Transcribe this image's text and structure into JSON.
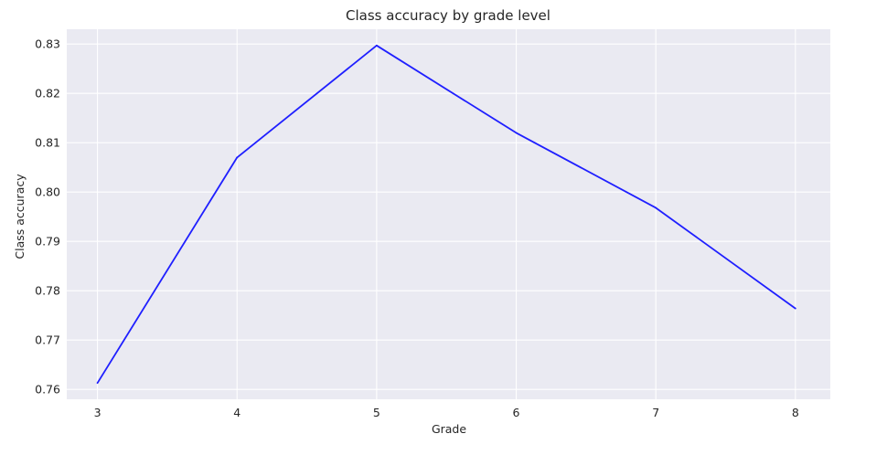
{
  "chart_data": {
    "type": "line",
    "title": "Class accuracy by grade level",
    "xlabel": "Grade",
    "ylabel": "Class accuracy",
    "x": [
      3,
      4,
      5,
      6,
      7,
      8
    ],
    "series": [
      {
        "values": [
          0.7613,
          0.807,
          0.8297,
          0.812,
          0.7968,
          0.7764
        ],
        "color": "#1f1fff"
      }
    ],
    "x_ticks": [
      "3",
      "4",
      "5",
      "6",
      "7",
      "8"
    ],
    "y_ticks": [
      "0.76",
      "0.77",
      "0.78",
      "0.79",
      "0.80",
      "0.81",
      "0.82",
      "0.83"
    ],
    "xlim": [
      2.78,
      8.25
    ],
    "ylim": [
      0.758,
      0.833
    ],
    "grid": true,
    "style": {
      "plot_background": "#eaeaf2",
      "grid_color": "#ffffff"
    }
  }
}
